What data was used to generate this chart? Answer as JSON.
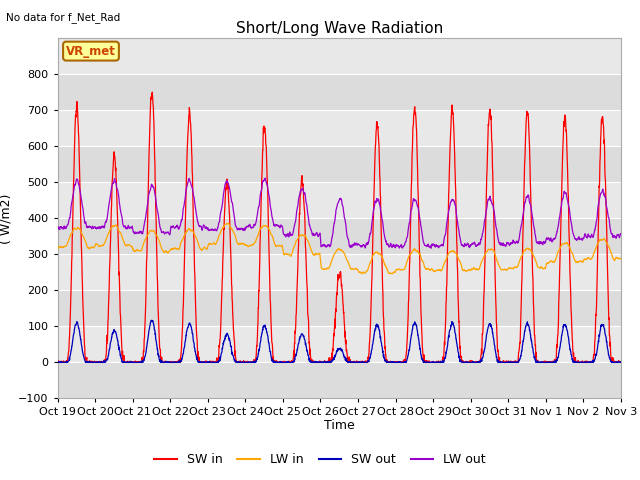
{
  "title": "Short/Long Wave Radiation",
  "ylabel": "( W/m2)",
  "xlabel": "Time",
  "top_left_text": "No data for f_Net_Rad",
  "box_label": "VR_met",
  "ylim": [
    -100,
    900
  ],
  "yticks": [
    -100,
    0,
    100,
    200,
    300,
    400,
    500,
    600,
    700,
    800
  ],
  "x_tick_labels": [
    "Oct 19",
    "Oct 20",
    "Oct 21",
    "Oct 22",
    "Oct 23",
    "Oct 24",
    "Oct 25",
    "Oct 26",
    "Oct 27",
    "Oct 28",
    "Oct 29",
    "Oct 30",
    "Oct 31",
    "Nov 1",
    "Nov 2",
    "Nov 3"
  ],
  "n_days": 15,
  "colors": {
    "SW_in": "#ff0000",
    "LW_in": "#ffa500",
    "SW_out": "#0000bb",
    "LW_out": "#9900cc"
  },
  "legend": [
    "SW in",
    "LW in",
    "SW out",
    "LW out"
  ],
  "plot_bg_color": "#e8e8e8",
  "grid_color": "#ffffff",
  "band_colors": [
    "#dcdcdc",
    "#e8e8e8"
  ],
  "sw_in_peaks": [
    710,
    575,
    750,
    695,
    505,
    655,
    510,
    245,
    665,
    710,
    705,
    700,
    695,
    685,
    680
  ],
  "lw_in_base": [
    320,
    325,
    310,
    315,
    330,
    325,
    300,
    260,
    250,
    258,
    255,
    258,
    262,
    278,
    288
  ],
  "lw_out_base": [
    375,
    375,
    360,
    375,
    370,
    378,
    355,
    325,
    325,
    325,
    325,
    328,
    332,
    342,
    348
  ]
}
